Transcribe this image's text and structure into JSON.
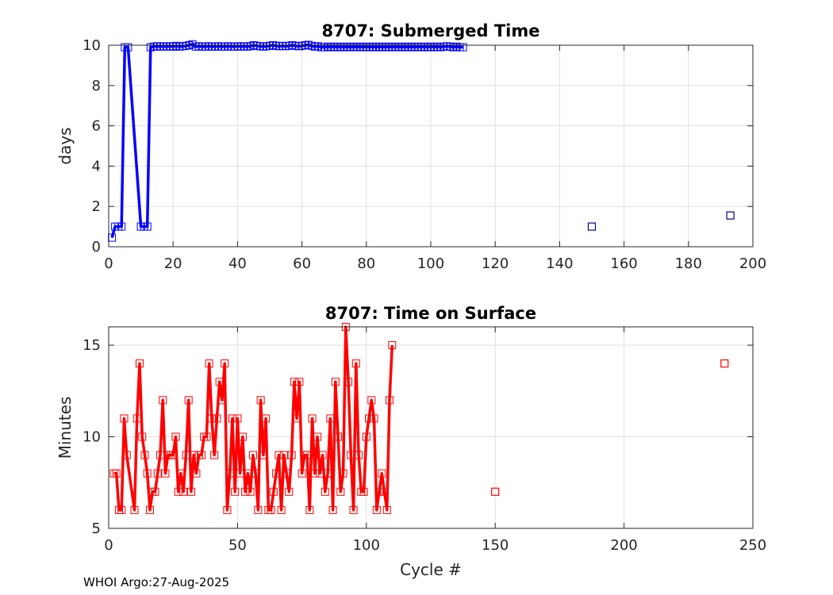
{
  "footer": "WHOI Argo:27-Aug-2025",
  "chart_data": [
    {
      "type": "line",
      "title": "8707: Submerged Time",
      "xlabel": "",
      "ylabel": "days",
      "xlim": [
        0,
        200
      ],
      "ylim": [
        0,
        10
      ],
      "xticks": [
        0,
        20,
        40,
        60,
        80,
        100,
        120,
        140,
        160,
        180,
        200
      ],
      "yticks": [
        0,
        2,
        4,
        6,
        8,
        10
      ],
      "grid": true,
      "color": "#0000ff",
      "marker": "square",
      "series": [
        {
          "x": [
            1,
            2,
            3,
            4,
            5,
            6,
            10,
            11,
            12,
            13,
            14,
            15,
            16,
            17,
            18,
            19,
            20,
            21,
            22,
            23,
            24,
            25,
            26,
            27,
            28,
            29,
            30,
            31,
            32,
            33,
            34,
            35,
            36,
            37,
            38,
            39,
            40,
            41,
            42,
            43,
            44,
            45,
            46,
            47,
            48,
            49,
            50,
            51,
            52,
            53,
            54,
            55,
            56,
            57,
            58,
            59,
            60,
            61,
            62,
            63,
            64,
            65,
            66,
            67,
            68,
            69,
            70,
            71,
            72,
            73,
            74,
            75,
            76,
            77,
            78,
            79,
            80,
            81,
            82,
            83,
            84,
            85,
            86,
            87,
            88,
            89,
            90,
            91,
            92,
            93,
            94,
            95,
            96,
            97,
            98,
            99,
            100,
            101,
            102,
            103,
            104,
            105,
            106,
            107,
            108,
            109,
            110
          ],
          "y": [
            0.45,
            1.0,
            1.0,
            1.0,
            9.9,
            9.9,
            1.0,
            1.0,
            1.0,
            9.9,
            9.93,
            9.95,
            9.93,
            9.95,
            9.93,
            9.95,
            9.93,
            9.97,
            9.93,
            9.95,
            9.97,
            10.0,
            10.05,
            9.93,
            9.95,
            9.93,
            9.93,
            9.95,
            9.93,
            9.93,
            9.95,
            9.93,
            9.93,
            9.95,
            9.93,
            9.93,
            9.95,
            9.93,
            9.95,
            9.93,
            9.95,
            10.0,
            9.97,
            9.95,
            9.93,
            9.95,
            9.97,
            10.0,
            9.97,
            9.95,
            9.97,
            9.95,
            9.97,
            10.0,
            9.97,
            9.95,
            9.97,
            10.0,
            10.02,
            9.97,
            9.93,
            9.95,
            9.9,
            9.9,
            9.93,
            9.9,
            9.93,
            9.9,
            9.93,
            9.9,
            9.93,
            9.9,
            9.93,
            9.9,
            9.93,
            9.9,
            9.93,
            9.9,
            9.93,
            9.9,
            9.93,
            9.9,
            9.93,
            9.9,
            9.93,
            9.9,
            9.93,
            9.9,
            9.93,
            9.9,
            9.93,
            9.9,
            9.93,
            9.9,
            9.93,
            9.9,
            9.93,
            9.9,
            9.93,
            9.9,
            9.93,
            9.95,
            9.93,
            9.9,
            9.93,
            9.9,
            9.9
          ]
        }
      ],
      "outliers": [
        {
          "x": 150,
          "y": 1.0
        },
        {
          "x": 193,
          "y": 1.55
        }
      ]
    },
    {
      "type": "line",
      "title": "8707: Time on Surface",
      "xlabel": "Cycle #",
      "ylabel": "Minutes",
      "xlim": [
        0,
        250
      ],
      "ylim": [
        5,
        16
      ],
      "xticks": [
        0,
        50,
        100,
        150,
        200,
        250
      ],
      "yticks": [
        5,
        10,
        15
      ],
      "grid": true,
      "color": "#ff0000",
      "marker": "square",
      "series": [
        {
          "x": [
            2,
            3,
            4,
            5,
            6,
            7,
            10,
            11,
            12,
            13,
            14,
            15,
            16,
            17,
            18,
            19,
            20,
            21,
            22,
            23,
            24,
            25,
            26,
            27,
            28,
            29,
            30,
            31,
            32,
            33,
            34,
            35,
            36,
            37,
            38,
            39,
            40,
            41,
            42,
            43,
            44,
            45,
            46,
            47,
            48,
            49,
            50,
            51,
            52,
            53,
            54,
            55,
            56,
            57,
            58,
            59,
            60,
            61,
            62,
            63,
            64,
            65,
            66,
            67,
            68,
            69,
            70,
            71,
            72,
            73,
            74,
            75,
            76,
            77,
            78,
            79,
            80,
            81,
            82,
            83,
            84,
            85,
            86,
            87,
            88,
            89,
            90,
            91,
            92,
            93,
            94,
            95,
            96,
            97,
            98,
            99,
            100,
            101,
            102,
            103,
            104,
            105,
            106,
            107,
            108,
            109,
            110
          ],
          "y": [
            8,
            8,
            6,
            6,
            11,
            9,
            6,
            11,
            14,
            10,
            9,
            8,
            6,
            7,
            7,
            8,
            9,
            12,
            8,
            9,
            9,
            9,
            10,
            7,
            8,
            7,
            9,
            12,
            7,
            9,
            8,
            9,
            9,
            10,
            10,
            14,
            11,
            9,
            11,
            13,
            12,
            14,
            6,
            8,
            11,
            7,
            11,
            8,
            10,
            7,
            8,
            7,
            9,
            8,
            6,
            12,
            9,
            11,
            6,
            6,
            7,
            8,
            9,
            6,
            9,
            8,
            7,
            9,
            13,
            11,
            13,
            8,
            9,
            9,
            6,
            11,
            8,
            10,
            8,
            9,
            7,
            8,
            11,
            6,
            13,
            10,
            7,
            8,
            16,
            13,
            9,
            6,
            14,
            9,
            7,
            7,
            10,
            11,
            12,
            11,
            6,
            7,
            8,
            7,
            6,
            12,
            15
          ]
        }
      ],
      "outliers": [
        {
          "x": 150,
          "y": 7
        },
        {
          "x": 239,
          "y": 14
        }
      ]
    }
  ]
}
